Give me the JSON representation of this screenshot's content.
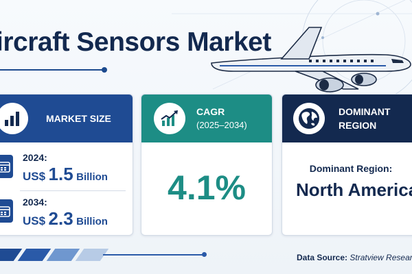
{
  "header": {
    "title": "ircraft Sensors Market"
  },
  "cards": {
    "market_size": {
      "heading": "MARKET SIZE",
      "rows": [
        {
          "year": "2024:",
          "currency": "US$",
          "value": "1.5",
          "unit": "Billion"
        },
        {
          "year": "2034:",
          "currency": "US$",
          "value": "2.3",
          "unit": "Billion"
        }
      ]
    },
    "cagr": {
      "heading": "CAGR",
      "period": "(2025–2034)",
      "value": "4.1%"
    },
    "region": {
      "heading_line1": "DOMINANT",
      "heading_line2": "REGION",
      "label": "Dominant Region:",
      "value": "North America"
    }
  },
  "footer": {
    "source_label": "Data Source:",
    "source_value": "Stratview Research"
  },
  "icons": {
    "market_size": "bar-chart-icon",
    "cagr": "growth-chart-icon",
    "region": "globe-icon",
    "calendar": "calendar-icon",
    "decoration": "airplane-icon"
  },
  "colors": {
    "navy": "#13294f",
    "blue": "#1f4b93",
    "teal": "#1d8d85"
  }
}
